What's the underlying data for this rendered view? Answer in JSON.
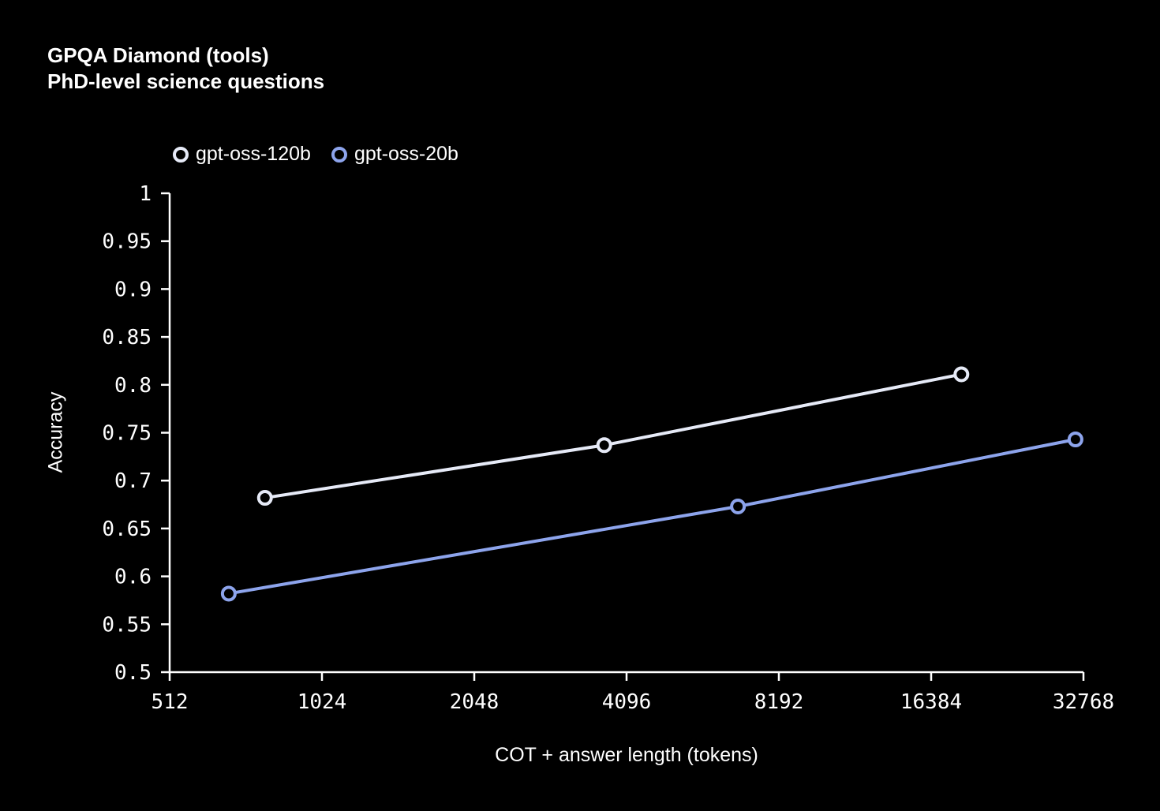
{
  "page": {
    "background": "#000000",
    "text_color": "#ffffff"
  },
  "header": {
    "title": "GPQA Diamond (tools)",
    "subtitle": "PhD-level science questions"
  },
  "chart_data": {
    "type": "line",
    "title": "GPQA Diamond (tools)",
    "subtitle": "PhD-level science questions",
    "xlabel": "COT + answer length (tokens)",
    "ylabel": "Accuracy",
    "x_scale": "log2",
    "xlim": [
      512,
      32768
    ],
    "ylim": [
      0.5,
      1.0
    ],
    "grid": false,
    "legend_position": "top-left",
    "axis_color": "#ffffff",
    "marker_style": "open-circle",
    "x_ticks": [
      {
        "value": 512,
        "label": "512"
      },
      {
        "value": 1024,
        "label": "1024"
      },
      {
        "value": 2048,
        "label": "2048"
      },
      {
        "value": 4096,
        "label": "4096"
      },
      {
        "value": 8192,
        "label": "8192"
      },
      {
        "value": 16384,
        "label": "16384"
      },
      {
        "value": 32768,
        "label": "32768"
      }
    ],
    "y_ticks": [
      {
        "value": 0.5,
        "label": "0.5"
      },
      {
        "value": 0.55,
        "label": "0.55"
      },
      {
        "value": 0.6,
        "label": "0.6"
      },
      {
        "value": 0.65,
        "label": "0.65"
      },
      {
        "value": 0.7,
        "label": "0.7"
      },
      {
        "value": 0.75,
        "label": "0.75"
      },
      {
        "value": 0.8,
        "label": "0.8"
      },
      {
        "value": 0.85,
        "label": "0.85"
      },
      {
        "value": 0.9,
        "label": "0.9"
      },
      {
        "value": 0.95,
        "label": "0.95"
      },
      {
        "value": 1.0,
        "label": "1"
      }
    ],
    "series": [
      {
        "name": "gpt-oss-120b",
        "color": "#e6eaf7",
        "points": [
          {
            "x": 790,
            "y": 0.682
          },
          {
            "x": 3700,
            "y": 0.737
          },
          {
            "x": 18800,
            "y": 0.811
          }
        ]
      },
      {
        "name": "gpt-oss-20b",
        "color": "#8da4ec",
        "points": [
          {
            "x": 670,
            "y": 0.582
          },
          {
            "x": 6800,
            "y": 0.673
          },
          {
            "x": 31600,
            "y": 0.743
          }
        ]
      }
    ]
  }
}
